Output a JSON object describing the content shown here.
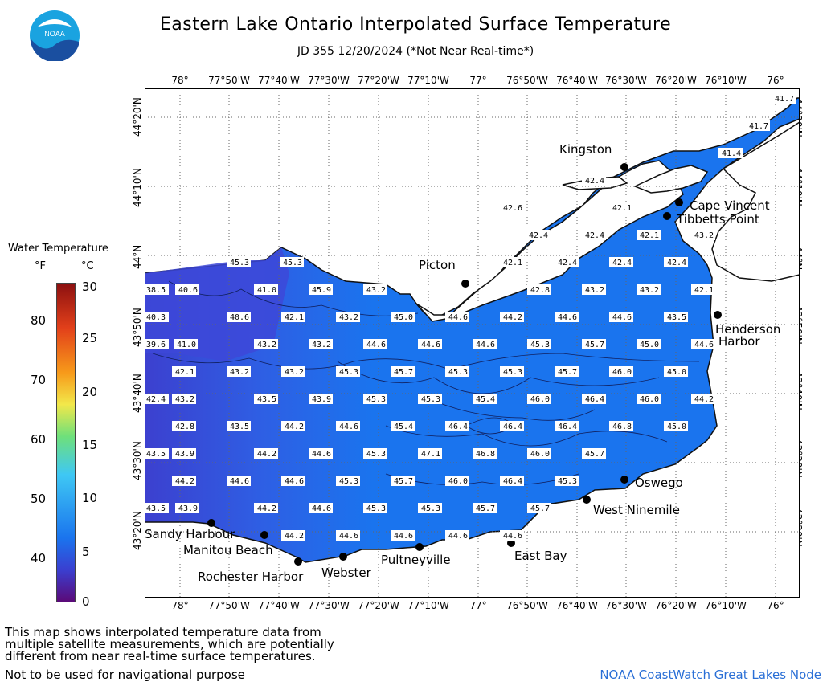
{
  "title": "Eastern Lake Ontario Interpolated Surface Temperature",
  "subtitle": "JD 355 12/20/2024 (*Not Near Real-time*)",
  "logo_text": "NOAA",
  "legend": {
    "title": "Water Temperature",
    "unit_f": "°F",
    "unit_c": "°C",
    "f_ticks": [
      "80",
      "70",
      "60",
      "50",
      "40"
    ],
    "c_ticks": [
      "30",
      "25",
      "20",
      "15",
      "10",
      "5",
      "0"
    ]
  },
  "lon_labels": [
    "78°",
    "77°50'W",
    "77°40'W",
    "77°30'W",
    "77°20'W",
    "77°10'W",
    "77°",
    "76°50'W",
    "76°40'W",
    "76°30'W",
    "76°20'W",
    "76°10'W",
    "76°"
  ],
  "lat_labels": [
    "44°20'N",
    "44°10'N",
    "44°N",
    "43°50'N",
    "43°40'N",
    "43°30'N",
    "43°20'N"
  ],
  "places": {
    "kingston": "Kingston",
    "cape_vincent": "Cape Vincent",
    "tibbetts": "Tibbetts Point",
    "picton": "Picton",
    "henderson": "Henderson",
    "harbor": "Harbor",
    "oswego": "Oswego",
    "west_ninemile": "West Ninemile",
    "east_bay": "East Bay",
    "pultneyville": "Pultneyville",
    "webster": "Webster",
    "rochester": "Rochester Harbor",
    "manitou": "Manitou Beach",
    "sandy": "Sandy Harbour"
  },
  "temps": {
    "r0": [
      "41.7",
      "41.7",
      "41.4"
    ],
    "r1": [
      "42.4",
      "42.1",
      "42.6",
      "42.4",
      "42.4",
      "42.1",
      "43.2"
    ],
    "r2": [
      "45.3",
      "45.3",
      "42.1",
      "42.4",
      "42.4",
      "42.4"
    ],
    "r3": [
      "38.5",
      "40.6",
      "41.0",
      "45.9",
      "43.2",
      "42.8",
      "43.2",
      "43.2",
      "42.1"
    ],
    "r4": [
      "40.3",
      "40.6",
      "42.1",
      "43.2",
      "45.0",
      "44.6",
      "44.2",
      "44.6",
      "44.6",
      "43.5"
    ],
    "r5": [
      "39.6",
      "41.0",
      "43.2",
      "43.2",
      "44.6",
      "44.6",
      "44.6",
      "45.3",
      "45.7",
      "45.0",
      "44.6"
    ],
    "r6": [
      "42.1",
      "43.2",
      "43.2",
      "45.3",
      "45.7",
      "45.3",
      "45.3",
      "45.7",
      "46.0",
      "45.0"
    ],
    "r7": [
      "42.4",
      "43.2",
      "43.5",
      "43.9",
      "45.3",
      "45.3",
      "45.4",
      "46.0",
      "46.4",
      "46.0",
      "44.2"
    ],
    "r8": [
      "42.8",
      "43.5",
      "44.2",
      "44.6",
      "45.4",
      "46.4",
      "46.4",
      "46.4",
      "46.8",
      "45.0"
    ],
    "r9": [
      "43.5",
      "43.9",
      "44.2",
      "44.6",
      "45.3",
      "47.1",
      "46.8",
      "46.0",
      "45.7"
    ],
    "r10": [
      "44.2",
      "44.6",
      "44.6",
      "45.3",
      "45.7",
      "46.0",
      "46.4",
      "45.3"
    ],
    "r11": [
      "43.5",
      "43.9",
      "44.2",
      "44.6",
      "45.3",
      "45.3",
      "45.7",
      "45.7"
    ],
    "r12": [
      "44.2",
      "44.6",
      "44.6",
      "44.6",
      "44.6"
    ]
  },
  "footer": {
    "note1": "This map shows interpolated temperature data from",
    "note2": "multiple satellite measurements, which are potentially",
    "note3": "different from near real-time surface temperatures.",
    "nav": "Not to be used for navigational purpose",
    "credit": "NOAA CoastWatch Great Lakes Node"
  },
  "colors": {
    "water_main": "#1a74ee",
    "water_warm": "#2b82f4",
    "water_cold": "#3d48d8",
    "colorbar": [
      "#5b0a78",
      "#3a3fd0",
      "#1a74ee",
      "#3fc8f4",
      "#6fe07a",
      "#f2e84a",
      "#f79a1a",
      "#e2401a",
      "#8c1010"
    ]
  }
}
